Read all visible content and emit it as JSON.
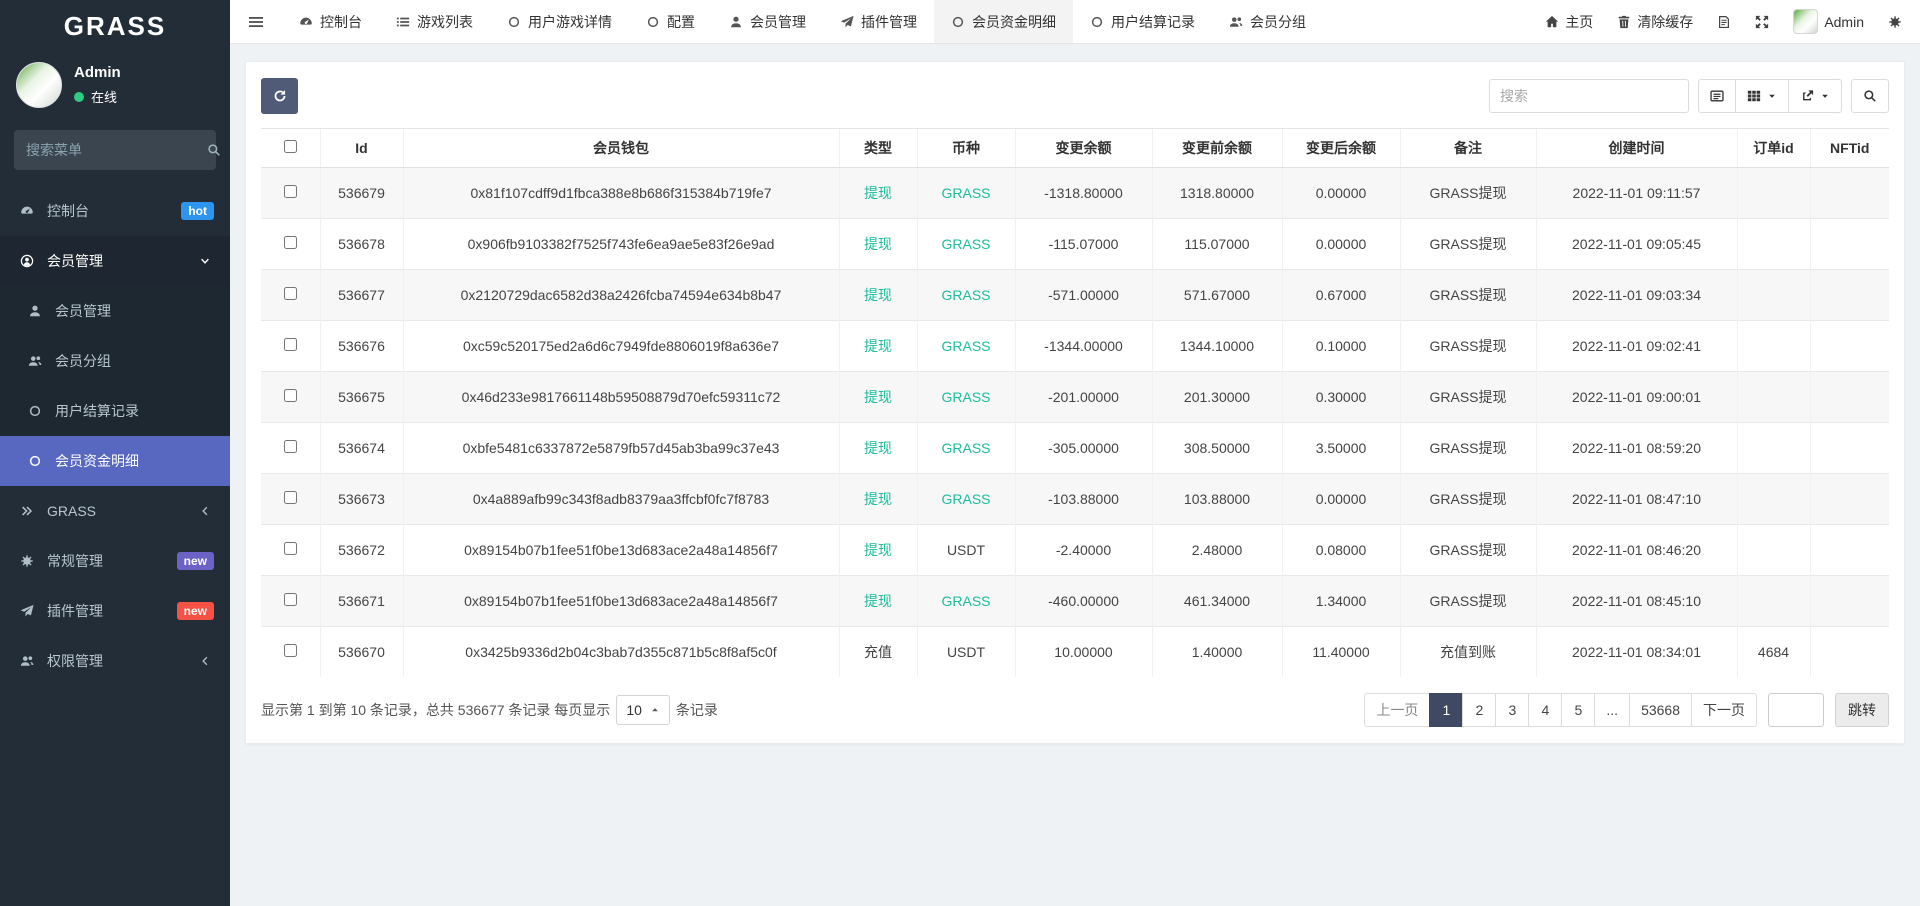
{
  "app": {
    "brand": "GRASS"
  },
  "colors": {
    "sidebar_bg": "#232d38",
    "submenu_bg": "#1e2831",
    "active_item": "#5868c1",
    "teal_link": "#1dbc9c",
    "hot_badge": "#2d95f0",
    "new_badge_purple": "#6c61c4",
    "new_badge_red": "#f55145",
    "refresh_button": "#505b77",
    "active_page": "#3f4964",
    "online_dot": "#2ecc80"
  },
  "sidebar": {
    "user": {
      "name": "Admin",
      "status": "在线"
    },
    "search_placeholder": "搜索菜单",
    "items": [
      {
        "id": "dashboard",
        "icon": "tachometer",
        "label": "控制台",
        "badge": {
          "text": "hot",
          "color": "#2d95f0"
        }
      },
      {
        "id": "member-mgmt",
        "icon": "user-circle",
        "label": "会员管理",
        "chevron": "down",
        "expanded": true,
        "children": [
          {
            "id": "member-list",
            "icon": "user",
            "label": "会员管理"
          },
          {
            "id": "member-group",
            "icon": "users",
            "label": "会员分组"
          },
          {
            "id": "settle-record",
            "icon": "circle-o",
            "label": "用户结算记录"
          },
          {
            "id": "fund-detail",
            "icon": "circle-o",
            "label": "会员资金明细",
            "active": true
          }
        ]
      },
      {
        "id": "grass",
        "icon": "angle-double-right",
        "label": "GRASS",
        "chevron": "left"
      },
      {
        "id": "general-mgmt",
        "icon": "cogs",
        "label": "常规管理",
        "badge": {
          "text": "new",
          "color": "#6c61c4"
        }
      },
      {
        "id": "addon-mgmt",
        "icon": "plane",
        "label": "插件管理",
        "badge": {
          "text": "new",
          "color": "#f55145"
        }
      },
      {
        "id": "auth-mgmt",
        "icon": "users",
        "label": "权限管理",
        "chevron": "left"
      }
    ]
  },
  "topbar": {
    "tabs": [
      {
        "id": "dashboard",
        "icon": "tachometer",
        "label": "控制台"
      },
      {
        "id": "game-list",
        "icon": "list",
        "label": "游戏列表"
      },
      {
        "id": "user-game-detail",
        "icon": "circle-o",
        "label": "用户游戏详情"
      },
      {
        "id": "config",
        "icon": "circle-o",
        "label": "配置"
      },
      {
        "id": "member-mgmt",
        "icon": "user",
        "label": "会员管理"
      },
      {
        "id": "addon-mgmt",
        "icon": "plane",
        "label": "插件管理"
      },
      {
        "id": "fund-detail",
        "icon": "circle-o",
        "label": "会员资金明细",
        "active": true
      },
      {
        "id": "settle-record",
        "icon": "circle-o",
        "label": "用户结算记录"
      },
      {
        "id": "member-group",
        "icon": "users",
        "label": "会员分组"
      }
    ],
    "right": {
      "home": "主页",
      "clear_cache": "清除缓存",
      "username": "Admin"
    }
  },
  "toolbar": {
    "search_placeholder": "搜索"
  },
  "table": {
    "columns": [
      {
        "key": "id",
        "label": "Id"
      },
      {
        "key": "wallet",
        "label": "会员钱包"
      },
      {
        "key": "type",
        "label": "类型"
      },
      {
        "key": "currency",
        "label": "币种"
      },
      {
        "key": "change",
        "label": "变更余额"
      },
      {
        "key": "before",
        "label": "变更前余额"
      },
      {
        "key": "after",
        "label": "变更后余额"
      },
      {
        "key": "remark",
        "label": "备注"
      },
      {
        "key": "created",
        "label": "创建时间"
      },
      {
        "key": "order_id",
        "label": "订单id"
      },
      {
        "key": "nft_id",
        "label": "NFTid"
      }
    ],
    "rows": [
      {
        "id": "536679",
        "wallet": "0x81f107cdff9d1fbca388e8b686f315384b719fe7",
        "type": "提现",
        "type_style": "link",
        "currency": "GRASS",
        "currency_style": "link",
        "change": "-1318.80000",
        "before": "1318.80000",
        "after": "0.00000",
        "remark": "GRASS提现",
        "created": "2022-11-01 09:11:57",
        "order_id": "",
        "nft_id": ""
      },
      {
        "id": "536678",
        "wallet": "0x906fb9103382f7525f743fe6ea9ae5e83f26e9ad",
        "type": "提现",
        "type_style": "link",
        "currency": "GRASS",
        "currency_style": "link",
        "change": "-115.07000",
        "before": "115.07000",
        "after": "0.00000",
        "remark": "GRASS提现",
        "created": "2022-11-01 09:05:45",
        "order_id": "",
        "nft_id": ""
      },
      {
        "id": "536677",
        "wallet": "0x2120729dac6582d38a2426fcba74594e634b8b47",
        "type": "提现",
        "type_style": "link",
        "currency": "GRASS",
        "currency_style": "link",
        "change": "-571.00000",
        "before": "571.67000",
        "after": "0.67000",
        "remark": "GRASS提现",
        "created": "2022-11-01 09:03:34",
        "order_id": "",
        "nft_id": ""
      },
      {
        "id": "536676",
        "wallet": "0xc59c520175ed2a6d6c7949fde8806019f8a636e7",
        "type": "提现",
        "type_style": "link",
        "currency": "GRASS",
        "currency_style": "link",
        "change": "-1344.00000",
        "before": "1344.10000",
        "after": "0.10000",
        "remark": "GRASS提现",
        "created": "2022-11-01 09:02:41",
        "order_id": "",
        "nft_id": ""
      },
      {
        "id": "536675",
        "wallet": "0x46d233e9817661148b59508879d70efc59311c72",
        "type": "提现",
        "type_style": "link",
        "currency": "GRASS",
        "currency_style": "link",
        "change": "-201.00000",
        "before": "201.30000",
        "after": "0.30000",
        "remark": "GRASS提现",
        "created": "2022-11-01 09:00:01",
        "order_id": "",
        "nft_id": ""
      },
      {
        "id": "536674",
        "wallet": "0xbfe5481c6337872e5879fb57d45ab3ba99c37e43",
        "type": "提现",
        "type_style": "link",
        "currency": "GRASS",
        "currency_style": "link",
        "change": "-305.00000",
        "before": "308.50000",
        "after": "3.50000",
        "remark": "GRASS提现",
        "created": "2022-11-01 08:59:20",
        "order_id": "",
        "nft_id": ""
      },
      {
        "id": "536673",
        "wallet": "0x4a889afb99c343f8adb8379aa3ffcbf0fc7f8783",
        "type": "提现",
        "type_style": "link",
        "currency": "GRASS",
        "currency_style": "link",
        "change": "-103.88000",
        "before": "103.88000",
        "after": "0.00000",
        "remark": "GRASS提现",
        "created": "2022-11-01 08:47:10",
        "order_id": "",
        "nft_id": ""
      },
      {
        "id": "536672",
        "wallet": "0x89154b07b1fee51f0be13d683ace2a48a14856f7",
        "type": "提现",
        "type_style": "link",
        "currency": "USDT",
        "currency_style": "plain",
        "change": "-2.40000",
        "before": "2.48000",
        "after": "0.08000",
        "remark": "GRASS提现",
        "created": "2022-11-01 08:46:20",
        "order_id": "",
        "nft_id": ""
      },
      {
        "id": "536671",
        "wallet": "0x89154b07b1fee51f0be13d683ace2a48a14856f7",
        "type": "提现",
        "type_style": "link",
        "currency": "GRASS",
        "currency_style": "link",
        "change": "-460.00000",
        "before": "461.34000",
        "after": "1.34000",
        "remark": "GRASS提现",
        "created": "2022-11-01 08:45:10",
        "order_id": "",
        "nft_id": ""
      },
      {
        "id": "536670",
        "wallet": "0x3425b9336d2b04c3bab7d355c871b5c8f8af5c0f",
        "type": "充值",
        "type_style": "plain",
        "currency": "USDT",
        "currency_style": "plain",
        "change": "10.00000",
        "before": "1.40000",
        "after": "11.40000",
        "remark": "充值到账",
        "created": "2022-11-01 08:34:01",
        "order_id": "4684",
        "nft_id": ""
      }
    ]
  },
  "footer": {
    "info_prefix": "显示第 1 到第 10 条记录，总共 536677 条记录 每页显示",
    "page_size": "10",
    "info_suffix": "条记录",
    "pagination": [
      {
        "label": "上一页",
        "disabled": true
      },
      {
        "label": "1",
        "active": true
      },
      {
        "label": "2"
      },
      {
        "label": "3"
      },
      {
        "label": "4"
      },
      {
        "label": "5"
      },
      {
        "label": "..."
      },
      {
        "label": "53668"
      },
      {
        "label": "下一页"
      }
    ],
    "jump_label": "跳转"
  }
}
